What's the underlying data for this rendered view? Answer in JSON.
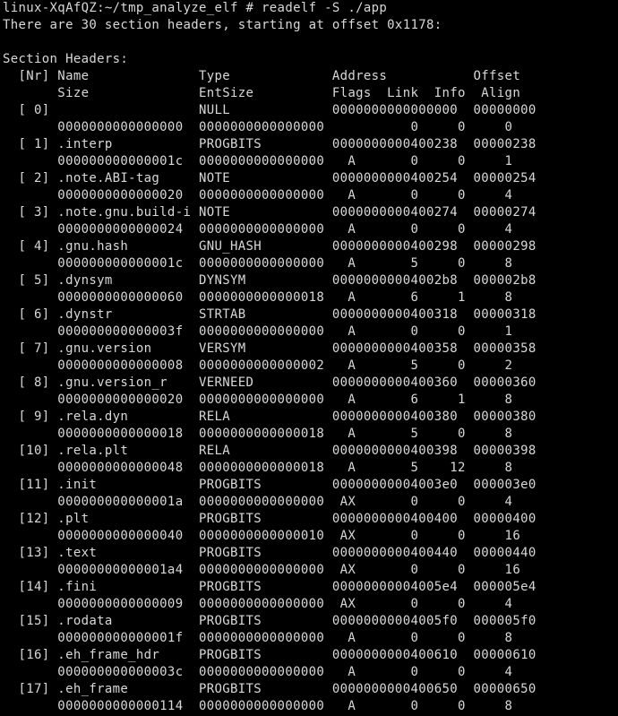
{
  "terminal": {
    "prompt": "linux-XqAfQZ:~/tmp_analyze_elf # readelf -S ./app",
    "summary": "There are 30 section headers, starting at offset 0x1178:",
    "blank": "",
    "table_title": "Section Headers:",
    "header_row_1": "  [Nr] Name              Type             Address           Offset",
    "header_row_2": "       Size              EntSize          Flags  Link  Info  Align",
    "rows": [
      "  [ 0]                   NULL             0000000000000000  00000000",
      "       0000000000000000  0000000000000000           0     0     0",
      "  [ 1] .interp           PROGBITS         0000000000400238  00000238",
      "       000000000000001c  0000000000000000   A       0     0     1",
      "  [ 2] .note.ABI-tag     NOTE             0000000000400254  00000254",
      "       0000000000000020  0000000000000000   A       0     0     4",
      "  [ 3] .note.gnu.build-i NOTE             0000000000400274  00000274",
      "       0000000000000024  0000000000000000   A       0     0     4",
      "  [ 4] .gnu.hash         GNU_HASH         0000000000400298  00000298",
      "       000000000000001c  0000000000000000   A       5     0     8",
      "  [ 5] .dynsym           DYNSYM           00000000004002b8  000002b8",
      "       0000000000000060  0000000000000018   A       6     1     8",
      "  [ 6] .dynstr           STRTAB           0000000000400318  00000318",
      "       000000000000003f  0000000000000000   A       0     0     1",
      "  [ 7] .gnu.version      VERSYM           0000000000400358  00000358",
      "       0000000000000008  0000000000000002   A       5     0     2",
      "  [ 8] .gnu.version_r    VERNEED          0000000000400360  00000360",
      "       0000000000000020  0000000000000000   A       6     1     8",
      "  [ 9] .rela.dyn         RELA             0000000000400380  00000380",
      "       0000000000000018  0000000000000018   A       5     0     8",
      "  [10] .rela.plt         RELA             0000000000400398  00000398",
      "       0000000000000048  0000000000000018   A       5    12     8",
      "  [11] .init             PROGBITS         00000000004003e0  000003e0",
      "       000000000000001a  0000000000000000  AX       0     0     4",
      "  [12] .plt              PROGBITS         0000000000400400  00000400",
      "       0000000000000040  0000000000000010  AX       0     0     16",
      "  [13] .text             PROGBITS         0000000000400440  00000440",
      "       00000000000001a4  0000000000000000  AX       0     0     16",
      "  [14] .fini             PROGBITS         00000000004005e4  000005e4",
      "       0000000000000009  0000000000000000  AX       0     0     4",
      "  [15] .rodata           PROGBITS         00000000004005f0  000005f0",
      "       000000000000001f  0000000000000000   A       0     0     8",
      "  [16] .eh_frame_hdr     PROGBITS         0000000000400610  00000610",
      "       000000000000003c  0000000000000000   A       0     0     4",
      "  [17] .eh_frame         PROGBITS         0000000000400650  00000650",
      "       0000000000000114  0000000000000000   A       0     0     8"
    ]
  },
  "colors": {
    "background": "#000000",
    "foreground": "#d8d8d8"
  }
}
